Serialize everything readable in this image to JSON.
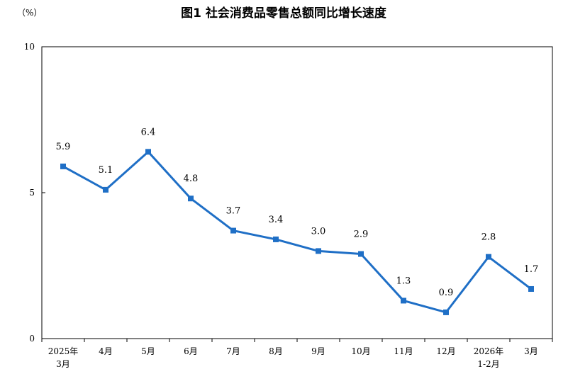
{
  "chart_data": {
    "type": "line",
    "title": "图1  社会消费品零售总额同比增长速度",
    "unit_label": "（%）",
    "categories": [
      {
        "line1": "2025年",
        "line2": "3月"
      },
      {
        "line1": "4月",
        "line2": ""
      },
      {
        "line1": "5月",
        "line2": ""
      },
      {
        "line1": "6月",
        "line2": ""
      },
      {
        "line1": "7月",
        "line2": ""
      },
      {
        "line1": "8月",
        "line2": ""
      },
      {
        "line1": "9月",
        "line2": ""
      },
      {
        "line1": "10月",
        "line2": ""
      },
      {
        "line1": "11月",
        "line2": ""
      },
      {
        "line1": "12月",
        "line2": ""
      },
      {
        "line1": "2026年",
        "line2": "1-2月"
      },
      {
        "line1": "3月",
        "line2": ""
      }
    ],
    "values": [
      5.9,
      5.1,
      6.4,
      4.8,
      3.7,
      3.4,
      3.0,
      2.9,
      1.3,
      0.9,
      2.8,
      1.7
    ],
    "value_labels": [
      "5.9",
      "5.1",
      "6.4",
      "4.8",
      "3.7",
      "3.4",
      "3.0",
      "2.9",
      "1.3",
      "0.9",
      "2.8",
      "1.7"
    ],
    "ylim": [
      0,
      10
    ],
    "yticks": [
      "0",
      "5",
      "10"
    ],
    "ytick_values": [
      0,
      5,
      10
    ],
    "grid": false,
    "legend": "none",
    "colors": {
      "line": "#1f6fc6",
      "axis": "#000000"
    }
  }
}
